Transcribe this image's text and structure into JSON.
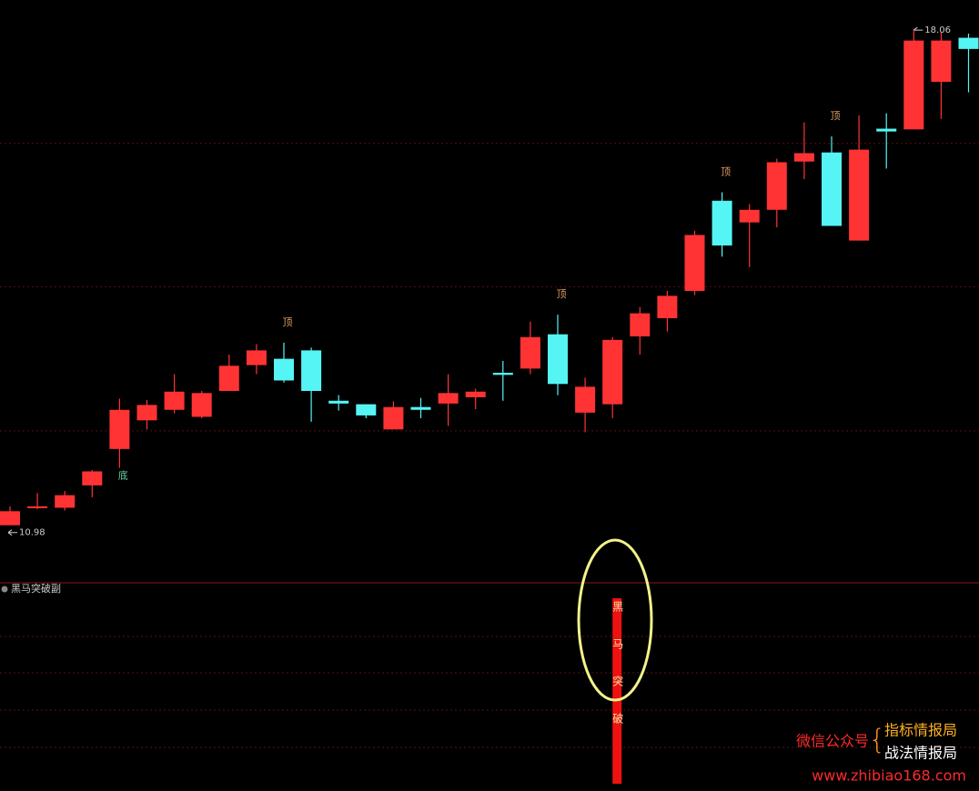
{
  "chart_data": [
    {
      "type": "candlestick",
      "categories": [
        null,
        null,
        null,
        null,
        null,
        null,
        null,
        null,
        null,
        null,
        null,
        null,
        null,
        null,
        null,
        null,
        null,
        null,
        null,
        null,
        null,
        null,
        null,
        null,
        null,
        null,
        null,
        null,
        null,
        null,
        null,
        null,
        null,
        null,
        null,
        null
      ],
      "open": [
        10.98,
        11.23,
        11.23,
        11.55,
        12.07,
        12.48,
        12.63,
        12.53,
        12.9,
        13.27,
        13.36,
        13.48,
        12.76,
        12.71,
        12.35,
        12.67,
        12.72,
        12.81,
        13.16,
        13.22,
        13.71,
        12.59,
        12.71,
        13.68,
        13.94,
        14.33,
        15.62,
        15.31,
        15.49,
        16.18,
        16.31,
        15.05,
        16.65,
        16.64,
        17.32,
        17.95
      ],
      "high": [
        11.25,
        11.44,
        11.47,
        11.77,
        12.79,
        12.77,
        13.14,
        12.9,
        13.42,
        13.57,
        13.59,
        13.52,
        12.84,
        12.71,
        12.75,
        12.8,
        13.14,
        12.93,
        13.33,
        13.89,
        13.99,
        13.09,
        13.67,
        14.1,
        14.33,
        15.19,
        15.74,
        15.57,
        16.22,
        16.74,
        16.54,
        16.84,
        16.87,
        18.06,
        18.03,
        18.01
      ],
      "low": [
        10.98,
        11.21,
        11.19,
        11.38,
        11.8,
        12.35,
        12.58,
        12.51,
        12.9,
        13.14,
        13.02,
        12.46,
        12.62,
        12.51,
        12.35,
        12.51,
        12.4,
        12.64,
        12.76,
        13.14,
        12.84,
        12.31,
        12.51,
        13.42,
        13.75,
        14.27,
        14.82,
        14.67,
        15.24,
        15.93,
        15.26,
        15.05,
        16.08,
        16.64,
        16.79,
        17.17
      ],
      "close": [
        11.18,
        11.25,
        11.41,
        11.75,
        12.63,
        12.7,
        12.89,
        12.87,
        13.26,
        13.48,
        13.05,
        12.9,
        12.72,
        12.55,
        12.67,
        12.63,
        12.87,
        12.89,
        13.13,
        13.67,
        13.0,
        12.96,
        13.63,
        14.01,
        14.26,
        15.13,
        14.98,
        15.49,
        16.17,
        16.3,
        15.26,
        16.35,
        16.61,
        17.91,
        17.91,
        17.79
      ],
      "marks": [
        null,
        null,
        null,
        null,
        "底",
        null,
        null,
        null,
        null,
        null,
        "顶",
        null,
        null,
        null,
        null,
        null,
        null,
        null,
        null,
        null,
        "顶",
        null,
        null,
        null,
        null,
        null,
        "顶",
        null,
        null,
        null,
        "顶",
        null,
        null,
        null,
        null,
        null
      ],
      "extreme_labels": {
        "high": "18.06",
        "low": "10.98"
      },
      "up_color": "#ff3333",
      "down_color": "#55f5f5",
      "ylim": [
        10.17,
        18.49
      ],
      "gridlines": [
        12.33,
        14.39,
        16.44
      ]
    },
    {
      "type": "signal",
      "title": "黑马突破副",
      "signal": [
        null,
        null,
        null,
        null,
        null,
        null,
        null,
        null,
        null,
        null,
        null,
        null,
        null,
        null,
        null,
        null,
        null,
        null,
        null,
        null,
        null,
        null,
        [
          "黑",
          "马",
          "突",
          "破"
        ],
        null,
        null,
        null,
        null,
        null,
        null,
        null,
        null,
        null,
        null,
        null,
        null,
        null
      ],
      "color": "#ee1111"
    }
  ],
  "watermark": {
    "label": "微信公众号",
    "lines": [
      "指标情报局",
      "战法情报局"
    ],
    "url": "www.zhibiao168.com"
  }
}
